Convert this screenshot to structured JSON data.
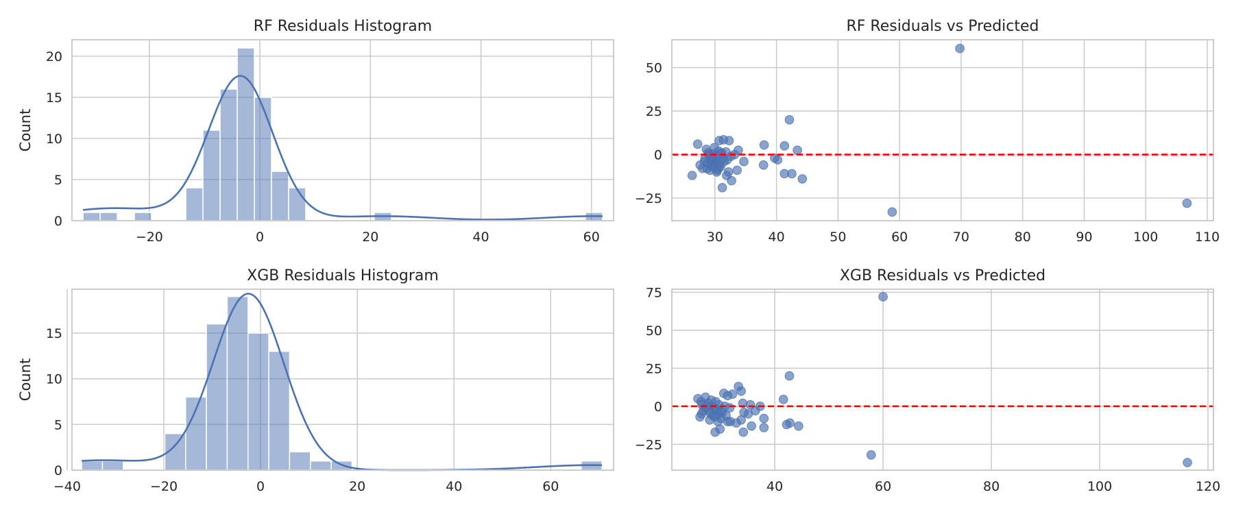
{
  "chart_data": [
    {
      "type": "bar",
      "subtype": "histogram_with_kde",
      "title": "RF Residuals Histogram",
      "xlabel": "",
      "ylabel": "Count",
      "xlim": [
        -34,
        64
      ],
      "ylim": [
        0,
        22
      ],
      "xticks": [
        -20,
        0,
        20,
        40,
        60
      ],
      "yticks": [
        0,
        5,
        10,
        15,
        20
      ],
      "bin_width": 3.1,
      "bins": [
        {
          "start": -32.0,
          "count": 1
        },
        {
          "start": -28.9,
          "count": 1
        },
        {
          "start": -22.7,
          "count": 1
        },
        {
          "start": -13.4,
          "count": 4
        },
        {
          "start": -10.3,
          "count": 11
        },
        {
          "start": -7.2,
          "count": 16
        },
        {
          "start": -4.1,
          "count": 21
        },
        {
          "start": -1.0,
          "count": 15
        },
        {
          "start": 2.1,
          "count": 6
        },
        {
          "start": 5.2,
          "count": 4
        },
        {
          "start": 20.7,
          "count": 1
        },
        {
          "start": 58.9,
          "count": 1
        }
      ],
      "kde": {
        "mean": -3.5,
        "sd": 5.8,
        "n": 82
      },
      "grid": true
    },
    {
      "type": "scatter",
      "title": "RF Residuals vs Predicted",
      "xlabel": "",
      "ylabel": "",
      "xlim": [
        23,
        111
      ],
      "ylim": [
        -38,
        66
      ],
      "xticks": [
        30,
        40,
        50,
        60,
        70,
        80,
        90,
        100,
        110
      ],
      "yticks": [
        -25,
        0,
        25,
        50
      ],
      "reference_line": 0,
      "points": [
        [
          69.8,
          61
        ],
        [
          106.7,
          -28
        ],
        [
          58.8,
          -33
        ],
        [
          42.1,
          20
        ],
        [
          26.3,
          -12
        ],
        [
          27.2,
          6
        ],
        [
          30.7,
          8
        ],
        [
          31.4,
          8.5
        ],
        [
          32.3,
          8
        ],
        [
          28.6,
          3
        ],
        [
          29.9,
          4
        ],
        [
          30.4,
          -9
        ],
        [
          31.2,
          -19
        ],
        [
          32.7,
          -15
        ],
        [
          32.2,
          -10
        ],
        [
          33.6,
          -9
        ],
        [
          38.0,
          5.5
        ],
        [
          41.3,
          5
        ],
        [
          43.4,
          2.5
        ],
        [
          37.9,
          -6
        ],
        [
          39.7,
          -2
        ],
        [
          40.2,
          -3
        ],
        [
          41.3,
          -11
        ],
        [
          42.5,
          -11
        ],
        [
          44.2,
          -14
        ],
        [
          34.7,
          -4
        ],
        [
          33.8,
          2.5
        ],
        [
          33.2,
          0
        ],
        [
          32.6,
          -1
        ],
        [
          31.8,
          1.5
        ],
        [
          31.0,
          0.5
        ],
        [
          30.1,
          -1
        ],
        [
          29.4,
          -3
        ],
        [
          28.8,
          -5
        ],
        [
          28.0,
          -8
        ],
        [
          27.6,
          -6
        ],
        [
          28.4,
          -2
        ],
        [
          29.0,
          0
        ],
        [
          29.6,
          -7
        ],
        [
          30.3,
          -10
        ],
        [
          30.8,
          -6
        ],
        [
          31.5,
          -4
        ],
        [
          31.9,
          -12
        ],
        [
          29.2,
          -9
        ],
        [
          28.7,
          -8
        ],
        [
          30.6,
          2
        ],
        [
          31.3,
          -2
        ],
        [
          30.0,
          -5
        ],
        [
          29.8,
          -3
        ],
        [
          30.9,
          -7
        ],
        [
          30.2,
          -4
        ],
        [
          29.5,
          -1
        ],
        [
          28.3,
          -4
        ],
        [
          30.5,
          -8
        ],
        [
          31.1,
          1
        ],
        [
          29.7,
          0.5
        ],
        [
          28.9,
          1
        ],
        [
          32.0,
          -3
        ],
        [
          30.4,
          -2
        ],
        [
          29.3,
          -6
        ]
      ],
      "grid": true
    },
    {
      "type": "bar",
      "subtype": "histogram_with_kde",
      "title": "XGB Residuals Histogram",
      "xlabel": "",
      "ylabel": "Count",
      "xlim": [
        -39,
        73
      ],
      "ylim": [
        0,
        19.8
      ],
      "xticks": [
        -40,
        -20,
        0,
        20,
        40,
        60
      ],
      "yticks": [
        0,
        5,
        10,
        15
      ],
      "bin_width": 4.3,
      "bins": [
        {
          "start": -37.0,
          "count": 1
        },
        {
          "start": -32.7,
          "count": 1
        },
        {
          "start": -19.8,
          "count": 4
        },
        {
          "start": -15.5,
          "count": 8
        },
        {
          "start": -11.2,
          "count": 16
        },
        {
          "start": -6.9,
          "count": 19
        },
        {
          "start": -2.6,
          "count": 15
        },
        {
          "start": 1.7,
          "count": 13
        },
        {
          "start": 6.0,
          "count": 2
        },
        {
          "start": 10.3,
          "count": 1
        },
        {
          "start": 14.6,
          "count": 1
        },
        {
          "start": 66.3,
          "count": 1
        }
      ],
      "kde": {
        "mean": -2.5,
        "sd": 7.3,
        "n": 82
      },
      "grid": true
    },
    {
      "type": "scatter",
      "title": "XGB Residuals vs Predicted",
      "xlabel": "",
      "ylabel": "",
      "xlim": [
        21,
        121
      ],
      "ylim": [
        -42,
        77
      ],
      "xticks": [
        40,
        60,
        80,
        100,
        120
      ],
      "yticks": [
        -25,
        0,
        25,
        50,
        75
      ],
      "reference_line": 0,
      "points": [
        [
          60.0,
          72
        ],
        [
          116.2,
          -37
        ],
        [
          57.8,
          -32
        ],
        [
          42.7,
          20
        ],
        [
          25.8,
          5
        ],
        [
          26.5,
          -5
        ],
        [
          27.2,
          6
        ],
        [
          28.3,
          4
        ],
        [
          29.0,
          -17
        ],
        [
          29.9,
          -15
        ],
        [
          30.6,
          8.5
        ],
        [
          31.3,
          7
        ],
        [
          32.2,
          8
        ],
        [
          33.3,
          13
        ],
        [
          33.8,
          10
        ],
        [
          34.1,
          2
        ],
        [
          35.5,
          1
        ],
        [
          36.4,
          -3
        ],
        [
          37.3,
          0
        ],
        [
          38.0,
          -8
        ],
        [
          38.0,
          -14
        ],
        [
          35.7,
          -13
        ],
        [
          34.2,
          -17
        ],
        [
          33.8,
          -9
        ],
        [
          32.9,
          -11
        ],
        [
          31.8,
          -10
        ],
        [
          31.3,
          -10
        ],
        [
          34.3,
          -4
        ],
        [
          35.1,
          -5
        ],
        [
          41.6,
          4.5
        ],
        [
          42.2,
          -12
        ],
        [
          42.8,
          -11
        ],
        [
          44.4,
          -13
        ],
        [
          26.2,
          -7
        ],
        [
          26.8,
          -3
        ],
        [
          27.5,
          0
        ],
        [
          28.0,
          -9
        ],
        [
          28.6,
          -6
        ],
        [
          29.3,
          -2
        ],
        [
          29.7,
          1
        ],
        [
          30.3,
          -4
        ],
        [
          30.8,
          0
        ],
        [
          31.0,
          -6
        ],
        [
          30.1,
          -8
        ],
        [
          29.5,
          -10
        ],
        [
          28.9,
          -7
        ],
        [
          28.2,
          -5
        ],
        [
          27.7,
          2
        ],
        [
          27.1,
          -1
        ],
        [
          26.6,
          1
        ],
        [
          28.4,
          0
        ],
        [
          29.1,
          3
        ],
        [
          30.0,
          -3
        ],
        [
          28.8,
          -1
        ],
        [
          29.6,
          -5
        ],
        [
          27.9,
          -3
        ],
        [
          31.7,
          -1
        ],
        [
          26.4,
          3
        ]
      ],
      "grid": true
    }
  ]
}
